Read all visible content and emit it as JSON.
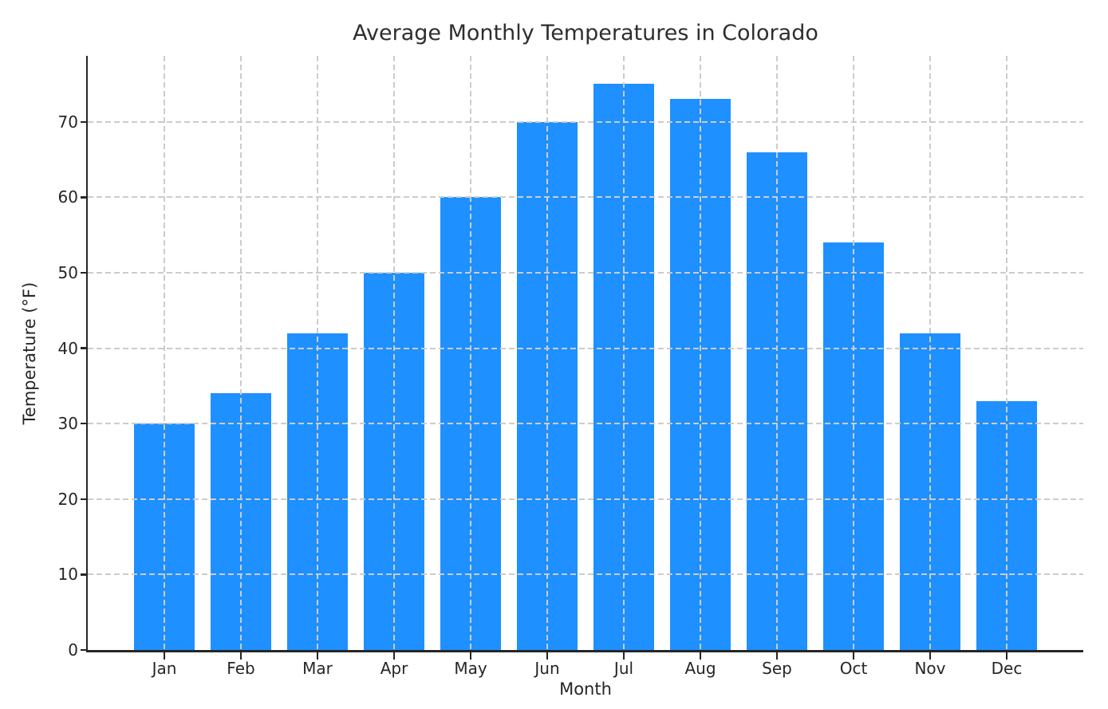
{
  "chart_data": {
    "type": "bar",
    "title": "Average Monthly Temperatures in Colorado",
    "xlabel": "Month",
    "ylabel": "Temperature (°F)",
    "categories": [
      "Jan",
      "Feb",
      "Mar",
      "Apr",
      "May",
      "Jun",
      "Jul",
      "Aug",
      "Sep",
      "Oct",
      "Nov",
      "Dec"
    ],
    "values": [
      30,
      34,
      42,
      50,
      60,
      70,
      75,
      73,
      66,
      54,
      42,
      33
    ],
    "yticks": [
      0,
      10,
      20,
      30,
      40,
      50,
      60,
      70
    ],
    "ylim": [
      0,
      78.75
    ],
    "grid": true,
    "grid_style": "dashed",
    "legend_position": "none",
    "bar_color": "#1E90FF",
    "grid_color": "#cccccc",
    "axis_color": "#262626",
    "text_color": "#262626",
    "background_color": "#ffffff"
  }
}
